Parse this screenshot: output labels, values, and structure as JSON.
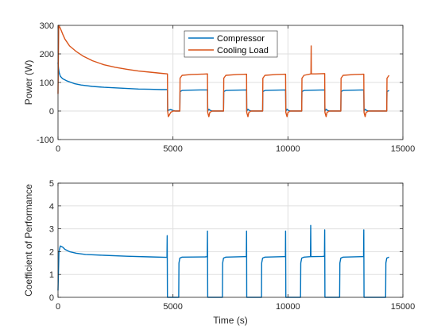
{
  "chart_data": [
    {
      "type": "line",
      "title": "",
      "xlabel": "",
      "ylabel": "Power (W)",
      "xlim": [
        0,
        15000
      ],
      "ylim": [
        -100,
        300
      ],
      "xticks": [
        0,
        5000,
        10000,
        15000
      ],
      "yticks": [
        -100,
        0,
        100,
        200,
        300
      ],
      "grid": true,
      "legend": "top-center",
      "series": [
        {
          "name": "Compressor",
          "color": "#0072BD",
          "x": [
            0,
            20,
            50,
            100,
            200,
            400,
            700,
            1000,
            1500,
            2000,
            2500,
            3000,
            3500,
            4000,
            4500,
            4760,
            4770,
            4800,
            4900,
            5000,
            5100,
            5200,
            5300,
            5310,
            5400,
            5800,
            6200,
            6500,
            6510,
            6560,
            6600,
            6700,
            7200,
            7210,
            7300,
            7800,
            8200,
            8210,
            8260,
            8300,
            8400,
            8900,
            8910,
            9000,
            9500,
            9900,
            9910,
            9960,
            10000,
            10100,
            10600,
            10610,
            10700,
            11200,
            11600,
            11610,
            11660,
            11700,
            11800,
            12300,
            12310,
            12400,
            12900,
            13300,
            13310,
            13360,
            13400,
            13500,
            14300,
            14310,
            14400
          ],
          "values": [
            170,
            150,
            135,
            122,
            113,
            105,
            96,
            91,
            86,
            83,
            81,
            79,
            77,
            76,
            75,
            75,
            0,
            3,
            5,
            2,
            0,
            0,
            0,
            68,
            72,
            73,
            74,
            74,
            0,
            6,
            3,
            0,
            0,
            68,
            72,
            73,
            74,
            0,
            6,
            3,
            0,
            0,
            68,
            72,
            73,
            74,
            0,
            6,
            3,
            0,
            0,
            68,
            72,
            73,
            74,
            0,
            6,
            3,
            0,
            0,
            68,
            72,
            73,
            74,
            0,
            6,
            3,
            0,
            0,
            68,
            72
          ]
        },
        {
          "name": "Cooling Load",
          "color": "#D95319",
          "x": [
            0,
            30,
            100,
            200,
            300,
            500,
            800,
            1100,
            1500,
            2000,
            2500,
            3000,
            3500,
            4000,
            4500,
            4760,
            4770,
            4800,
            4900,
            5000,
            5100,
            5200,
            5300,
            5310,
            5400,
            5800,
            6200,
            6500,
            6510,
            6560,
            6600,
            6700,
            7200,
            7210,
            7300,
            7800,
            8200,
            8210,
            8260,
            8300,
            8400,
            8900,
            8910,
            9000,
            9500,
            9900,
            9910,
            9960,
            10000,
            10100,
            10600,
            10610,
            10700,
            11000,
            11010,
            11020,
            11200,
            11600,
            11610,
            11660,
            11700,
            11800,
            12300,
            12310,
            12400,
            12900,
            13300,
            13310,
            13360,
            13400,
            13500,
            14300,
            14310,
            14400
          ],
          "values": [
            60,
            300,
            290,
            270,
            252,
            228,
            208,
            192,
            176,
            162,
            153,
            146,
            140,
            136,
            132,
            130,
            0,
            -20,
            -5,
            0,
            0,
            0,
            0,
            115,
            125,
            128,
            129,
            130,
            -5,
            -20,
            -5,
            0,
            0,
            115,
            125,
            128,
            129,
            -5,
            -20,
            -5,
            0,
            0,
            115,
            125,
            128,
            129,
            -5,
            -20,
            -5,
            0,
            0,
            115,
            125,
            130,
            228,
            130,
            130,
            131,
            -5,
            -20,
            -5,
            0,
            0,
            115,
            125,
            128,
            129,
            -5,
            -20,
            -5,
            0,
            0,
            115,
            125
          ]
        }
      ]
    },
    {
      "type": "line",
      "title": "",
      "xlabel": "Time (s)",
      "ylabel": "Coefficient of Performance",
      "xlim": [
        0,
        15000
      ],
      "ylim": [
        0,
        5
      ],
      "xticks": [
        0,
        5000,
        10000,
        15000
      ],
      "yticks": [
        0,
        1,
        2,
        3,
        4,
        5
      ],
      "grid": true,
      "series": [
        {
          "color": "#0072BD",
          "x": [
            0,
            40,
            100,
            200,
            300,
            500,
            800,
            1200,
            2000,
            3000,
            4000,
            4740,
            4750,
            4760,
            5250,
            5260,
            5300,
            5400,
            6400,
            6490,
            6500,
            6510,
            7150,
            7160,
            7200,
            7300,
            8100,
            8190,
            8200,
            8210,
            8850,
            8860,
            8900,
            9000,
            9800,
            9890,
            9900,
            9910,
            10550,
            10560,
            10600,
            10700,
            10980,
            10990,
            11000,
            11500,
            11590,
            11600,
            11610,
            12250,
            12260,
            12300,
            12400,
            13200,
            13290,
            13300,
            13310,
            14250,
            14260,
            14300,
            14400
          ],
          "values": [
            0.3,
            2.0,
            2.25,
            2.2,
            2.1,
            2.0,
            1.93,
            1.88,
            1.84,
            1.8,
            1.77,
            1.75,
            2.7,
            0,
            0,
            1.5,
            1.72,
            1.76,
            1.77,
            1.78,
            2.9,
            0,
            0,
            1.5,
            1.72,
            1.76,
            1.78,
            1.78,
            2.9,
            0,
            0,
            1.5,
            1.72,
            1.76,
            1.78,
            1.78,
            2.9,
            0,
            0,
            1.5,
            1.72,
            1.76,
            1.78,
            3.15,
            1.78,
            1.79,
            1.8,
            2.95,
            0,
            0,
            1.5,
            1.72,
            1.76,
            1.78,
            1.78,
            2.95,
            0,
            0,
            1.5,
            1.72,
            1.76
          ]
        }
      ]
    }
  ]
}
